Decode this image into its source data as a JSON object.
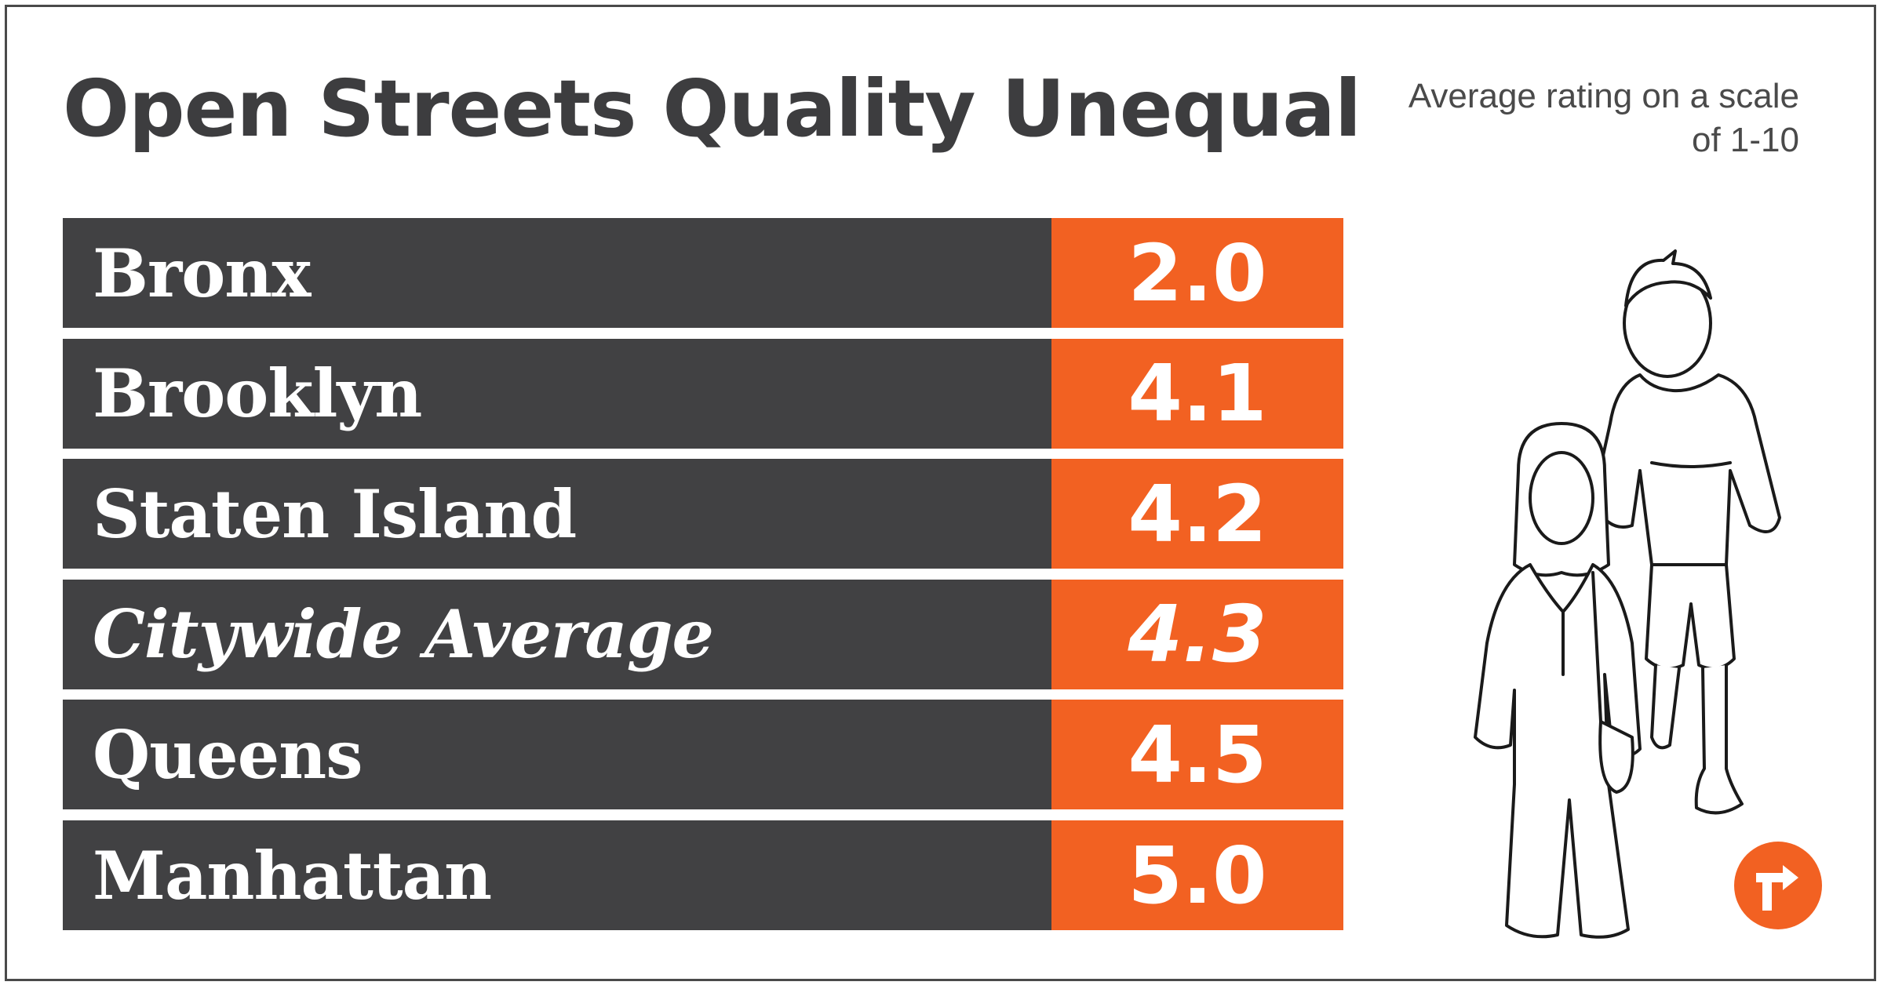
{
  "chart_data": {
    "type": "bar",
    "title": "Open Streets Quality Unequal",
    "subtitle": "Average rating on a scale of 1-10",
    "categories": [
      "Bronx",
      "Brooklyn",
      "Staten Island",
      "Citywide Average",
      "Queens",
      "Manhattan"
    ],
    "values": [
      2.0,
      4.1,
      4.2,
      4.3,
      4.5,
      5.0
    ],
    "value_labels": [
      "2.0",
      "4.1",
      "4.2",
      "4.3",
      "4.5",
      "5.0"
    ],
    "italic_index": 3,
    "colors": {
      "label_bg": "#414143",
      "value_bg": "#f26122",
      "text": "#ffffff"
    },
    "ylim": [
      1,
      10
    ]
  },
  "icons": [
    "pedestrians-illustration",
    "turn-arrow-logo-icon"
  ]
}
